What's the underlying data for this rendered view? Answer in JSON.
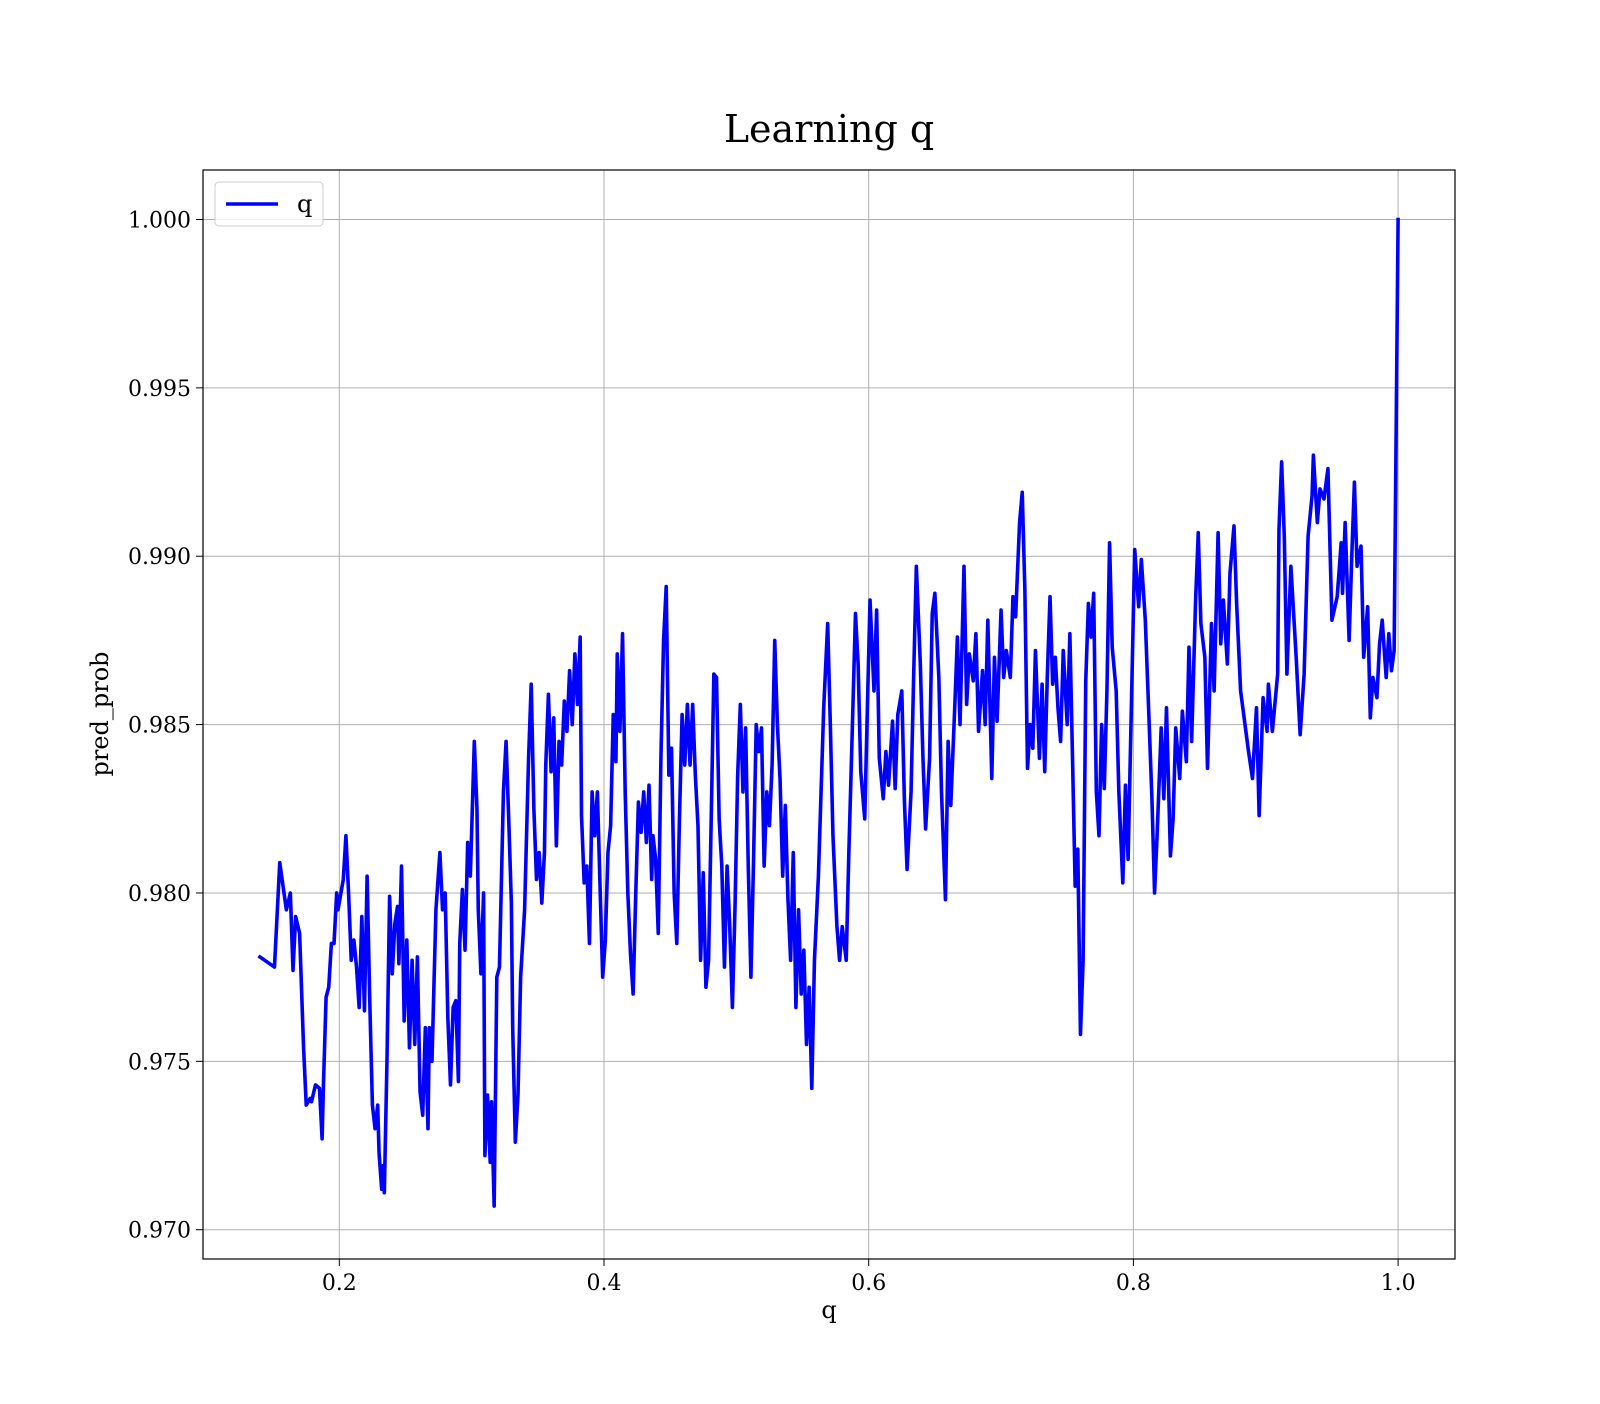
{
  "chart_data": {
    "type": "line",
    "title": "Learning q",
    "x_label": "q",
    "y_label": "pred_prob",
    "grid": true,
    "legend": "upper left",
    "xlim": [
      0.097,
      1.043
    ],
    "ylim": [
      0.96913,
      1.00147
    ],
    "xticks": [
      0.2,
      0.4,
      0.6,
      0.8,
      {
        "value": 1,
        "label": "1.0"
      }
    ],
    "yticks": [
      {
        "value": 0.97,
        "label": "0.970"
      },
      0.975,
      {
        "value": 0.98,
        "label": "0.980"
      },
      0.985,
      {
        "value": 0.99,
        "label": "0.990"
      },
      0.995,
      {
        "value": 1,
        "label": "1.000"
      }
    ],
    "x": [
      0.14,
      0.151,
      0.155,
      0.16,
      0.163,
      0.165,
      0.167,
      0.17,
      0.173,
      0.175,
      0.178,
      0.179,
      0.182,
      0.185,
      0.187,
      0.188,
      0.19,
      0.192,
      0.194,
      0.196,
      0.198,
      0.199,
      0.203,
      0.205,
      0.207,
      0.209,
      0.211,
      0.213,
      0.215,
      0.217,
      0.219,
      0.221,
      0.223,
      0.225,
      0.227,
      0.229,
      0.23,
      0.232,
      0.233,
      0.234,
      0.236,
      0.238,
      0.24,
      0.242,
      0.244,
      0.245,
      0.247,
      0.249,
      0.251,
      0.253,
      0.255,
      0.257,
      0.259,
      0.261,
      0.263,
      0.265,
      0.267,
      0.268,
      0.27,
      0.273,
      0.276,
      0.278,
      0.28,
      0.282,
      0.284,
      0.286,
      0.288,
      0.29,
      0.291,
      0.293,
      0.295,
      0.297,
      0.299,
      0.302,
      0.304,
      0.305,
      0.307,
      0.309,
      0.31,
      0.312,
      0.314,
      0.315,
      0.317,
      0.319,
      0.321,
      0.324,
      0.326,
      0.328,
      0.33,
      0.331,
      0.333,
      0.335,
      0.337,
      0.34,
      0.343,
      0.345,
      0.347,
      0.349,
      0.351,
      0.353,
      0.355,
      0.356,
      0.358,
      0.36,
      0.362,
      0.364,
      0.366,
      0.368,
      0.37,
      0.372,
      0.374,
      0.376,
      0.378,
      0.38,
      0.382,
      0.383,
      0.385,
      0.387,
      0.389,
      0.391,
      0.393,
      0.395,
      0.397,
      0.399,
      0.401,
      0.403,
      0.405,
      0.407,
      0.409,
      0.41,
      0.412,
      0.414,
      0.416,
      0.418,
      0.42,
      0.422,
      0.424,
      0.426,
      0.428,
      0.43,
      0.432,
      0.434,
      0.436,
      0.437,
      0.439,
      0.441,
      0.443,
      0.445,
      0.447,
      0.449,
      0.451,
      0.453,
      0.455,
      0.457,
      0.459,
      0.461,
      0.463,
      0.465,
      0.467,
      0.469,
      0.471,
      0.473,
      0.475,
      0.477,
      0.479,
      0.481,
      0.483,
      0.485,
      0.487,
      0.489,
      0.491,
      0.493,
      0.495,
      0.497,
      0.499,
      0.501,
      0.503,
      0.505,
      0.507,
      0.509,
      0.511,
      0.513,
      0.515,
      0.517,
      0.519,
      0.521,
      0.523,
      0.525,
      0.527,
      0.529,
      0.531,
      0.533,
      0.535,
      0.537,
      0.539,
      0.541,
      0.543,
      0.545,
      0.547,
      0.549,
      0.551,
      0.553,
      0.555,
      0.557,
      0.559,
      0.562,
      0.564,
      0.566,
      0.569,
      0.571,
      0.573,
      0.576,
      0.578,
      0.58,
      0.583,
      0.585,
      0.587,
      0.59,
      0.592,
      0.594,
      0.597,
      0.599,
      0.601,
      0.604,
      0.606,
      0.608,
      0.611,
      0.613,
      0.615,
      0.618,
      0.62,
      0.622,
      0.625,
      0.627,
      0.629,
      0.632,
      0.634,
      0.636,
      0.639,
      0.641,
      0.643,
      0.646,
      0.648,
      0.65,
      0.653,
      0.655,
      0.658,
      0.66,
      0.662,
      0.665,
      0.667,
      0.669,
      0.672,
      0.674,
      0.676,
      0.679,
      0.681,
      0.683,
      0.686,
      0.688,
      0.69,
      0.693,
      0.695,
      0.697,
      0.7,
      0.702,
      0.704,
      0.707,
      0.709,
      0.711,
      0.714,
      0.716,
      0.718,
      0.72,
      0.722,
      0.724,
      0.726,
      0.729,
      0.731,
      0.733,
      0.735,
      0.737,
      0.739,
      0.741,
      0.743,
      0.745,
      0.747,
      0.75,
      0.752,
      0.754,
      0.756,
      0.758,
      0.76,
      0.762,
      0.764,
      0.766,
      0.768,
      0.77,
      0.772,
      0.774,
      0.776,
      0.778,
      0.78,
      0.782,
      0.784,
      0.787,
      0.789,
      0.792,
      0.794,
      0.796,
      0.799,
      0.801,
      0.804,
      0.806,
      0.809,
      0.811,
      0.814,
      0.816,
      0.818,
      0.821,
      0.823,
      0.825,
      0.828,
      0.83,
      0.832,
      0.835,
      0.837,
      0.84,
      0.842,
      0.844,
      0.847,
      0.849,
      0.851,
      0.854,
      0.856,
      0.859,
      0.861,
      0.864,
      0.866,
      0.868,
      0.871,
      0.873,
      0.876,
      0.878,
      0.881,
      0.887,
      0.89,
      0.893,
      0.895,
      0.898,
      0.901,
      0.902,
      0.905,
      0.909,
      0.91,
      0.912,
      0.914,
      0.916,
      0.919,
      0.923,
      0.926,
      0.929,
      0.932,
      0.935,
      0.936,
      0.939,
      0.941,
      0.944,
      0.947,
      0.95,
      0.954,
      0.957,
      0.958,
      0.96,
      0.963,
      0.965,
      0.967,
      0.969,
      0.972,
      0.974,
      0.977,
      0.979,
      0.981,
      0.984,
      0.986,
      0.988,
      0.991,
      0.993,
      0.995,
      0.997,
      1.0
    ],
    "series": [
      {
        "name": "q",
        "color": "#0000ff",
        "values": [
          0.9781,
          0.9778,
          0.9809,
          0.9795,
          0.98,
          0.9777,
          0.9793,
          0.9788,
          0.9754,
          0.9737,
          0.9739,
          0.9738,
          0.9743,
          0.9742,
          0.9727,
          0.9743,
          0.9769,
          0.9772,
          0.9785,
          0.9785,
          0.98,
          0.9795,
          0.9804,
          0.9817,
          0.98,
          0.978,
          0.9786,
          0.9778,
          0.9766,
          0.9793,
          0.9765,
          0.9805,
          0.9768,
          0.9737,
          0.973,
          0.9737,
          0.9723,
          0.9712,
          0.9719,
          0.9711,
          0.975,
          0.9799,
          0.9776,
          0.9791,
          0.9796,
          0.9779,
          0.9808,
          0.9762,
          0.9786,
          0.9754,
          0.978,
          0.9755,
          0.9781,
          0.9741,
          0.9734,
          0.976,
          0.973,
          0.976,
          0.975,
          0.9795,
          0.9812,
          0.9795,
          0.98,
          0.9763,
          0.9743,
          0.9766,
          0.9768,
          0.9744,
          0.9785,
          0.9801,
          0.9783,
          0.9815,
          0.9805,
          0.9845,
          0.9825,
          0.9795,
          0.9776,
          0.98,
          0.9722,
          0.974,
          0.972,
          0.9738,
          0.9707,
          0.9775,
          0.9778,
          0.983,
          0.9845,
          0.9822,
          0.9797,
          0.976,
          0.9726,
          0.974,
          0.9775,
          0.9795,
          0.984,
          0.9862,
          0.9825,
          0.9804,
          0.9812,
          0.9797,
          0.9812,
          0.9838,
          0.9859,
          0.9836,
          0.9852,
          0.9814,
          0.9845,
          0.9838,
          0.9857,
          0.9848,
          0.9866,
          0.985,
          0.9871,
          0.9856,
          0.9876,
          0.9823,
          0.9803,
          0.9808,
          0.9785,
          0.983,
          0.9817,
          0.983,
          0.9802,
          0.9775,
          0.9786,
          0.9812,
          0.982,
          0.9853,
          0.9839,
          0.9871,
          0.9848,
          0.9877,
          0.983,
          0.98,
          0.9782,
          0.977,
          0.98,
          0.9827,
          0.9818,
          0.983,
          0.9815,
          0.9832,
          0.9804,
          0.9817,
          0.981,
          0.9788,
          0.984,
          0.9875,
          0.9891,
          0.9835,
          0.9843,
          0.98,
          0.9785,
          0.9822,
          0.9853,
          0.9838,
          0.9856,
          0.9838,
          0.9856,
          0.9835,
          0.982,
          0.978,
          0.9806,
          0.9772,
          0.978,
          0.9822,
          0.9865,
          0.9864,
          0.9822,
          0.9808,
          0.9778,
          0.9808,
          0.979,
          0.9766,
          0.9796,
          0.9835,
          0.9856,
          0.983,
          0.9849,
          0.9808,
          0.9775,
          0.981,
          0.985,
          0.9842,
          0.9849,
          0.9808,
          0.983,
          0.982,
          0.9838,
          0.9875,
          0.985,
          0.9834,
          0.9805,
          0.9826,
          0.9798,
          0.978,
          0.9812,
          0.9766,
          0.9795,
          0.977,
          0.9783,
          0.9755,
          0.9772,
          0.9742,
          0.978,
          0.9805,
          0.983,
          0.9855,
          0.988,
          0.985,
          0.9817,
          0.979,
          0.978,
          0.979,
          0.978,
          0.9812,
          0.984,
          0.9883,
          0.9868,
          0.9836,
          0.9822,
          0.9855,
          0.9887,
          0.986,
          0.9884,
          0.984,
          0.9828,
          0.9842,
          0.9832,
          0.9851,
          0.9831,
          0.9853,
          0.986,
          0.9827,
          0.9807,
          0.983,
          0.9865,
          0.9897,
          0.9868,
          0.984,
          0.9819,
          0.984,
          0.9883,
          0.9889,
          0.9864,
          0.983,
          0.9798,
          0.9845,
          0.9826,
          0.9855,
          0.9876,
          0.985,
          0.9897,
          0.9856,
          0.9871,
          0.9863,
          0.9877,
          0.9848,
          0.9866,
          0.985,
          0.9881,
          0.9834,
          0.987,
          0.9851,
          0.9884,
          0.9864,
          0.9872,
          0.9864,
          0.9888,
          0.9882,
          0.991,
          0.9919,
          0.989,
          0.9837,
          0.985,
          0.9843,
          0.9872,
          0.984,
          0.9862,
          0.9836,
          0.9865,
          0.9888,
          0.9862,
          0.987,
          0.9855,
          0.9845,
          0.9872,
          0.985,
          0.9877,
          0.984,
          0.9802,
          0.9813,
          0.9758,
          0.978,
          0.9863,
          0.9886,
          0.9876,
          0.9889,
          0.983,
          0.9817,
          0.985,
          0.9831,
          0.986,
          0.9904,
          0.9873,
          0.986,
          0.983,
          0.9803,
          0.9832,
          0.981,
          0.9865,
          0.9902,
          0.9885,
          0.9899,
          0.9881,
          0.986,
          0.9828,
          0.98,
          0.9818,
          0.9849,
          0.9828,
          0.9855,
          0.9811,
          0.9822,
          0.9849,
          0.9834,
          0.9854,
          0.9839,
          0.9873,
          0.9845,
          0.9887,
          0.9907,
          0.988,
          0.987,
          0.9837,
          0.988,
          0.986,
          0.9907,
          0.9874,
          0.9887,
          0.9868,
          0.9895,
          0.9909,
          0.9886,
          0.986,
          0.9842,
          0.9834,
          0.9855,
          0.9823,
          0.9858,
          0.9848,
          0.9862,
          0.9848,
          0.9865,
          0.9908,
          0.9928,
          0.9906,
          0.9865,
          0.9897,
          0.987,
          0.9847,
          0.9865,
          0.9906,
          0.9918,
          0.993,
          0.991,
          0.992,
          0.9917,
          0.9926,
          0.9881,
          0.9888,
          0.9904,
          0.9889,
          0.991,
          0.9875,
          0.99,
          0.9922,
          0.9897,
          0.9903,
          0.987,
          0.9885,
          0.9852,
          0.9864,
          0.9858,
          0.9874,
          0.9881,
          0.9864,
          0.9877,
          0.9866,
          0.9872,
          1.0
        ]
      }
    ]
  }
}
